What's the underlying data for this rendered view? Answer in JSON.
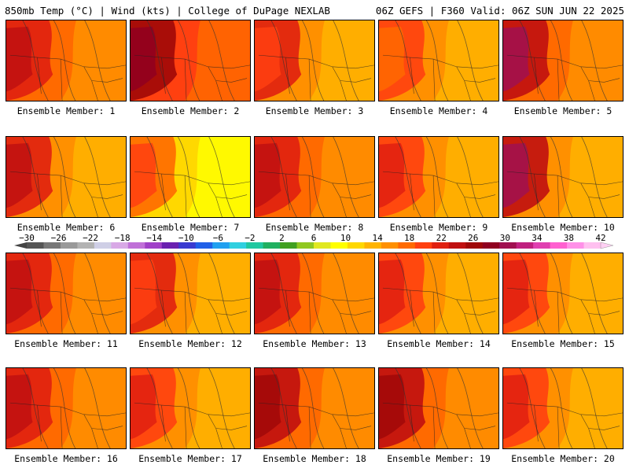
{
  "header": {
    "left": "850mb Temp (°C) | Wind (kts) | College of DuPage NEXLAB",
    "right": "06Z GEFS | F360 Valid: 06Z SUN JUN 22 2025"
  },
  "colorbar": {
    "ticks": [
      "−30",
      "−26",
      "−22",
      "−18",
      "−14",
      "−10",
      "−6",
      "−2",
      "2",
      "6",
      "10",
      "14",
      "18",
      "22",
      "26",
      "30",
      "34",
      "38",
      "42"
    ],
    "colors": [
      "#555555",
      "#777777",
      "#999999",
      "#b3b3b3",
      "#cfcfe6",
      "#d8a8e6",
      "#c070d8",
      "#a040c8",
      "#6a20b0",
      "#3a3ad0",
      "#2060e8",
      "#20a0f0",
      "#30d0e0",
      "#20c8a0",
      "#20b060",
      "#40a020",
      "#90c820",
      "#e0e820",
      "#ffff00",
      "#ffd800",
      "#ffb400",
      "#ff9000",
      "#ff6a00",
      "#ff4010",
      "#e02010",
      "#c01010",
      "#a00808",
      "#900020",
      "#a01050",
      "#c02080",
      "#e040b0",
      "#ff60d0",
      "#ff90e8",
      "#ffc0f0"
    ]
  },
  "panels": [
    {
      "caption": "Ensemble Member: 1",
      "tone": "#ff6a00",
      "hot": [
        "#e02010",
        "#c01010"
      ],
      "warm": "#ff9000"
    },
    {
      "caption": "Ensemble Member: 2",
      "tone": "#ff4010",
      "hot": [
        "#a00808",
        "#900020"
      ],
      "warm": "#ff6a00"
    },
    {
      "caption": "Ensemble Member: 3",
      "tone": "#ff9000",
      "hot": [
        "#e02010",
        "#ff4010"
      ],
      "warm": "#ffb400"
    },
    {
      "caption": "Ensemble Member: 4",
      "tone": "#ff9000",
      "hot": [
        "#ff4010",
        "#ff6a00"
      ],
      "warm": "#ffb400"
    },
    {
      "caption": "Ensemble Member: 5",
      "tone": "#ff6a00",
      "hot": [
        "#c01010",
        "#a01050"
      ],
      "warm": "#ff9000"
    },
    {
      "caption": "Ensemble Member: 6",
      "tone": "#ff9000",
      "hot": [
        "#e02010",
        "#c01010"
      ],
      "warm": "#ffb400"
    },
    {
      "caption": "Ensemble Member: 7",
      "tone": "#ffd800",
      "hot": [
        "#ff6a00",
        "#ff4010"
      ],
      "warm": "#ffff00"
    },
    {
      "caption": "Ensemble Member: 8",
      "tone": "#ff6a00",
      "hot": [
        "#e02010",
        "#c01010"
      ],
      "warm": "#ff9000"
    },
    {
      "caption": "Ensemble Member: 9",
      "tone": "#ff9000",
      "hot": [
        "#ff4010",
        "#e02010"
      ],
      "warm": "#ffb400"
    },
    {
      "caption": "Ensemble Member: 10",
      "tone": "#ff9000",
      "hot": [
        "#c01010",
        "#a01050"
      ],
      "warm": "#ffb400"
    },
    {
      "caption": "Ensemble Member: 11",
      "tone": "#ff6a00",
      "hot": [
        "#e02010",
        "#c01010"
      ],
      "warm": "#ff9000"
    },
    {
      "caption": "Ensemble Member: 12",
      "tone": "#ff9000",
      "hot": [
        "#e02010",
        "#ff4010"
      ],
      "warm": "#ffb400"
    },
    {
      "caption": "Ensemble Member: 13",
      "tone": "#ff6a00",
      "hot": [
        "#e02010",
        "#c01010"
      ],
      "warm": "#ff9000"
    },
    {
      "caption": "Ensemble Member: 14",
      "tone": "#ff9000",
      "hot": [
        "#ff4010",
        "#e02010"
      ],
      "warm": "#ffb400"
    },
    {
      "caption": "Ensemble Member: 15",
      "tone": "#ff9000",
      "hot": [
        "#ff4010",
        "#e02010"
      ],
      "warm": "#ffb400"
    },
    {
      "caption": "Ensemble Member: 16",
      "tone": "#ff6a00",
      "hot": [
        "#e02010",
        "#c01010"
      ],
      "warm": "#ff9000"
    },
    {
      "caption": "Ensemble Member: 17",
      "tone": "#ff9000",
      "hot": [
        "#ff4010",
        "#e02010"
      ],
      "warm": "#ffb400"
    },
    {
      "caption": "Ensemble Member: 18",
      "tone": "#ff6a00",
      "hot": [
        "#c01010",
        "#a00808"
      ],
      "warm": "#ff9000"
    },
    {
      "caption": "Ensemble Member: 19",
      "tone": "#ff6a00",
      "hot": [
        "#c01010",
        "#a00808"
      ],
      "warm": "#ff9000"
    },
    {
      "caption": "Ensemble Member: 20",
      "tone": "#ff9000",
      "hot": [
        "#ff4010",
        "#e02010"
      ],
      "warm": "#ffb400"
    }
  ]
}
